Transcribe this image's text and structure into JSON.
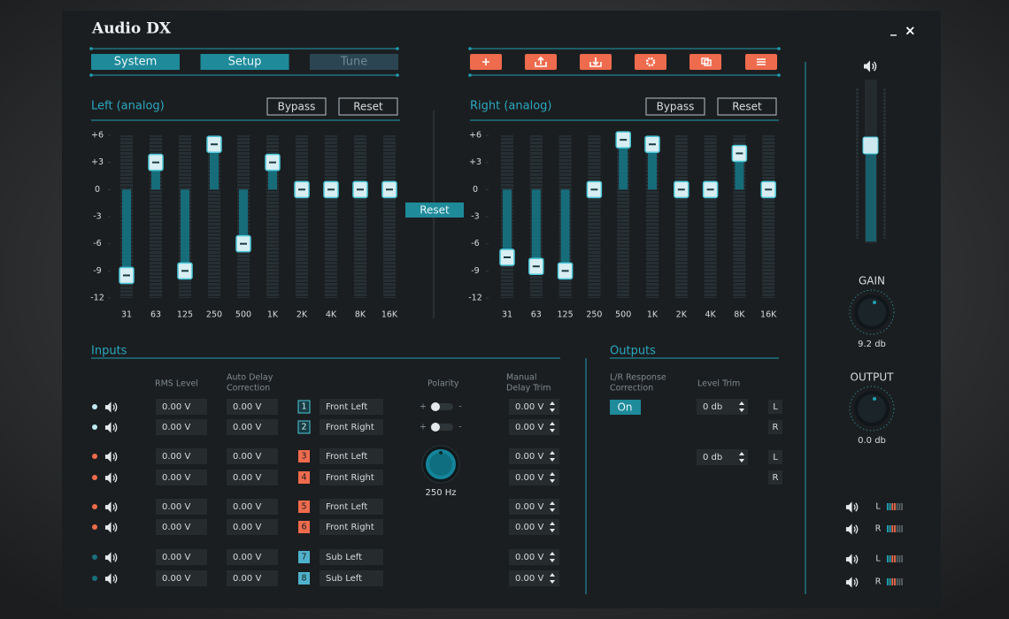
{
  "app": {
    "title": "Audio DX",
    "window_controls": [
      "_",
      "×"
    ]
  },
  "tabs": [
    "System",
    "Setup",
    "Tune"
  ],
  "eq": {
    "yticks": [
      {
        "value": 6,
        "label": "+6"
      },
      {
        "value": 3,
        "label": "+3"
      },
      0,
      -3,
      -6,
      -9,
      -12
    ],
    "bands": [
      "31",
      "63",
      "125",
      "250",
      "500",
      "1K",
      "2K",
      "4K",
      "8K",
      "16K"
    ],
    "reset": "Reset",
    "channels": [
      {
        "title": "Left (analog)",
        "bypass": "Bypass",
        "reset": "Reset",
        "values": [
          -9.5,
          3,
          -9,
          5,
          -6,
          3,
          0,
          0,
          0,
          0
        ]
      },
      {
        "title": "Right (analog)",
        "bypass": "Bypass",
        "reset": "Reset",
        "values": [
          -7.5,
          -8.5,
          -9,
          0,
          5.5,
          5,
          0,
          0,
          4,
          0
        ]
      }
    ]
  },
  "inputs": {
    "title": "Inputs",
    "rms_header": "RMS Level",
    "delay_header": [
      "Auto Delay",
      "Correction"
    ],
    "polarity_header": "Polarity",
    "trim_header": [
      "Manual",
      "Delay Trim"
    ],
    "polarity_signs": [
      "+",
      "-"
    ],
    "frequency": "250 Hz",
    "rows": [
      {
        "number": "1",
        "name": "Front Left",
        "rms": "0.00 V",
        "delay": "0.00 V",
        "trim": "0.00 V"
      },
      {
        "number": "2",
        "name": "Front Right",
        "rms": "0.00 V",
        "delay": "0.00 V",
        "trim": "0.00 V"
      },
      {
        "number": "3",
        "name": "Front Left",
        "rms": "0.00 V",
        "delay": "0.00 V",
        "trim": "0.00 V"
      },
      {
        "number": "4",
        "name": "Front Right",
        "rms": "0.00 V",
        "delay": "0.00 V",
        "trim": "0.00 V"
      },
      {
        "number": "5",
        "name": "Front Left",
        "rms": "0.00 V",
        "delay": "0.00 V",
        "trim": "0.00 V"
      },
      {
        "number": "6",
        "name": "Front Right",
        "rms": "0.00 V",
        "delay": "0.00 V",
        "trim": "0.00 V"
      },
      {
        "number": "7",
        "name": "Sub Left",
        "rms": "0.00 V",
        "delay": "0.00 V",
        "trim": "0.00 V"
      },
      {
        "number": "8",
        "name": "Sub Left",
        "rms": "0.00 V",
        "delay": "0.00 V",
        "trim": "0.00 V"
      }
    ]
  },
  "outputs": {
    "title": "Outputs",
    "response_header": [
      "L/R Response",
      "Correction"
    ],
    "response_value": "On",
    "level_header": "Level Trim",
    "trims": [
      {
        "value": "0 db",
        "channels": [
          "L",
          "R"
        ]
      },
      {
        "value": "0 db",
        "channels": [
          "L",
          "R"
        ]
      }
    ]
  },
  "master": {
    "gain_label": "GAIN",
    "gain_value": "9.2 db",
    "output_label": "OUTPUT",
    "output_value": "0.0 db",
    "meters": [
      "L",
      "R",
      "L",
      "R"
    ]
  }
}
